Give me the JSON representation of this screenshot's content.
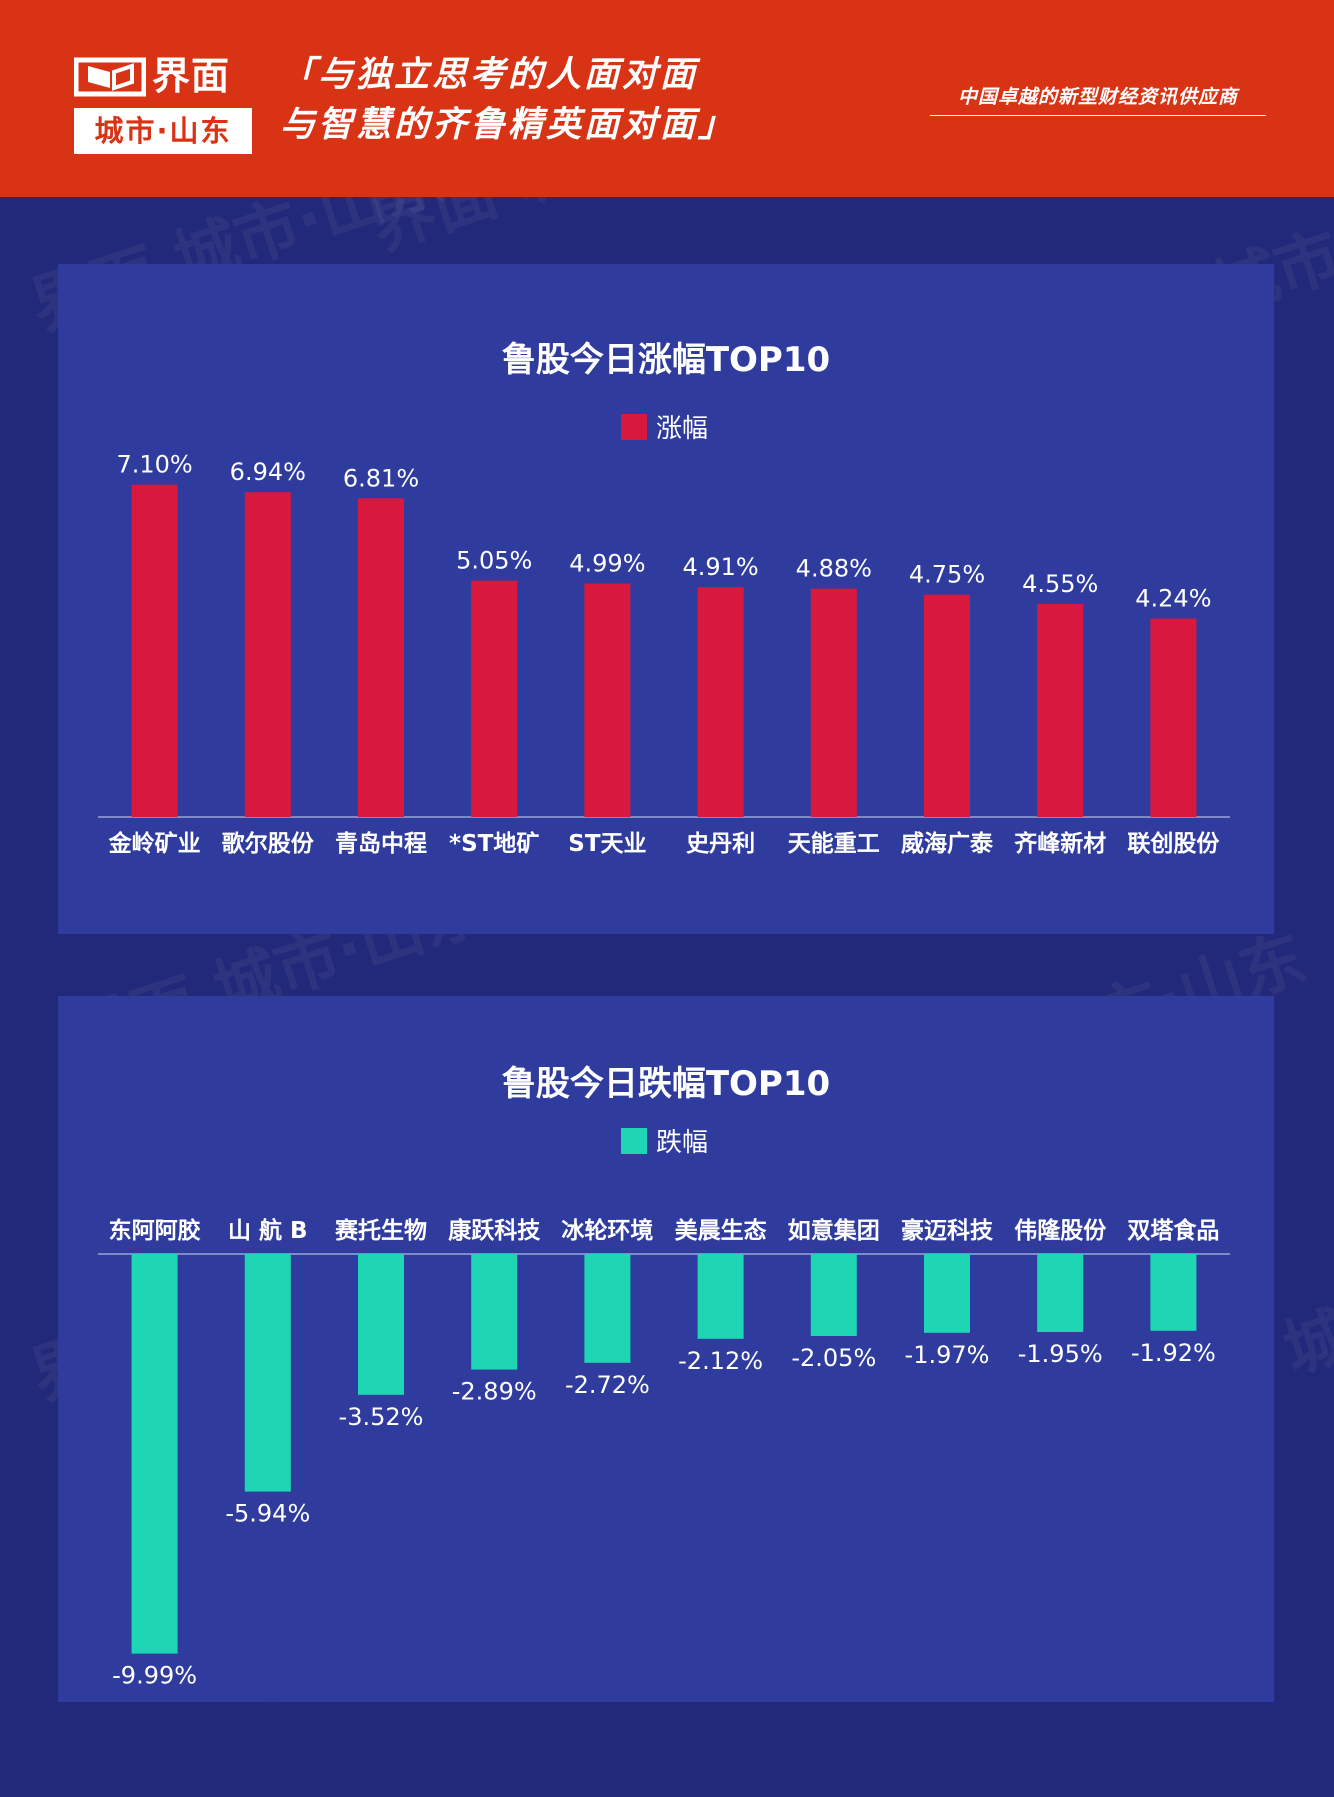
{
  "header": {
    "logo_name": "界面",
    "logo_city": "城市·山东",
    "slogan_line1": "「与独立思考的人面对面",
    "slogan_line2": "与智慧的齐鲁精英面对面」",
    "tagline": "中国卓越的新型财经资讯供应商",
    "colors": {
      "header_bg": "#d83315",
      "page_bg": "#23297a",
      "panel_bg": "#2f3c9e"
    }
  },
  "watermark_text": "界面 城市·山东",
  "chart_data": [
    {
      "type": "bar",
      "title": "鲁股今日涨幅TOP10",
      "legend": "涨幅",
      "color": "#d8193d",
      "categories": [
        "金岭矿业",
        "歌尔股份",
        "青岛中程",
        "*ST地矿",
        "ST天业",
        "史丹利",
        "天能重工",
        "威海广泰",
        "齐峰新材",
        "联创股份"
      ],
      "values": [
        7.1,
        6.94,
        6.81,
        5.05,
        4.99,
        4.91,
        4.88,
        4.75,
        4.55,
        4.24
      ],
      "value_labels": [
        "7.10%",
        "6.94%",
        "6.81%",
        "5.05%",
        "4.99%",
        "4.91%",
        "4.88%",
        "4.75%",
        "4.55%",
        "4.24%"
      ],
      "ylim": [
        0,
        7.5
      ]
    },
    {
      "type": "bar",
      "title": "鲁股今日跌幅TOP10",
      "legend": "跌幅",
      "color": "#1fd6b4",
      "categories": [
        "东阿阿胶",
        "山 航 B",
        "赛托生物",
        "康跃科技",
        "冰轮环境",
        "美晨生态",
        "如意集团",
        "豪迈科技",
        "伟隆股份",
        "双塔食品"
      ],
      "values": [
        -9.99,
        -5.94,
        -3.52,
        -2.89,
        -2.72,
        -2.12,
        -2.05,
        -1.97,
        -1.95,
        -1.92
      ],
      "value_labels": [
        "-9.99%",
        "-5.94%",
        "-3.52%",
        "-2.89%",
        "-2.72%",
        "-2.12%",
        "-2.05%",
        "-1.97%",
        "-1.95%",
        "-1.92%"
      ],
      "ylim": [
        -10.5,
        0
      ]
    }
  ]
}
